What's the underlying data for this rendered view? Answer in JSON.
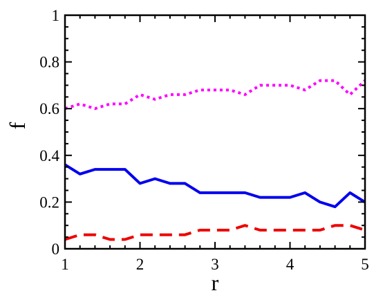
{
  "chart_data": {
    "type": "line",
    "title": "",
    "xlabel": "r",
    "ylabel": "f",
    "xlim": [
      1,
      5
    ],
    "ylim": [
      0,
      1
    ],
    "xticks": [
      "1",
      "2",
      "3",
      "4",
      "5"
    ],
    "yticks": [
      "0",
      "0.2",
      "0.4",
      "0.6",
      "0.8",
      "1"
    ],
    "grid": false,
    "legend": "none",
    "x": [
      1.0,
      1.2,
      1.4,
      1.6,
      1.8,
      2.0,
      2.2,
      2.4,
      2.6,
      2.8,
      3.0,
      3.2,
      3.4,
      3.6,
      3.8,
      4.0,
      4.2,
      4.4,
      4.6,
      4.8,
      5.0
    ],
    "series": [
      {
        "color": "#ff00ff",
        "style": "dotted",
        "values": [
          0.6,
          0.62,
          0.6,
          0.62,
          0.62,
          0.66,
          0.64,
          0.66,
          0.66,
          0.68,
          0.68,
          0.68,
          0.66,
          0.7,
          0.7,
          0.7,
          0.68,
          0.72,
          0.72,
          0.66,
          0.72
        ]
      },
      {
        "color": "#0000ee",
        "style": "solid",
        "values": [
          0.36,
          0.32,
          0.34,
          0.34,
          0.34,
          0.28,
          0.3,
          0.28,
          0.28,
          0.24,
          0.24,
          0.24,
          0.24,
          0.22,
          0.22,
          0.22,
          0.24,
          0.2,
          0.18,
          0.24,
          0.2
        ]
      },
      {
        "color": "#ee0000",
        "style": "dashed",
        "values": [
          0.04,
          0.06,
          0.06,
          0.04,
          0.04,
          0.06,
          0.06,
          0.06,
          0.06,
          0.08,
          0.08,
          0.08,
          0.1,
          0.08,
          0.08,
          0.08,
          0.08,
          0.08,
          0.1,
          0.1,
          0.08
        ]
      }
    ]
  }
}
